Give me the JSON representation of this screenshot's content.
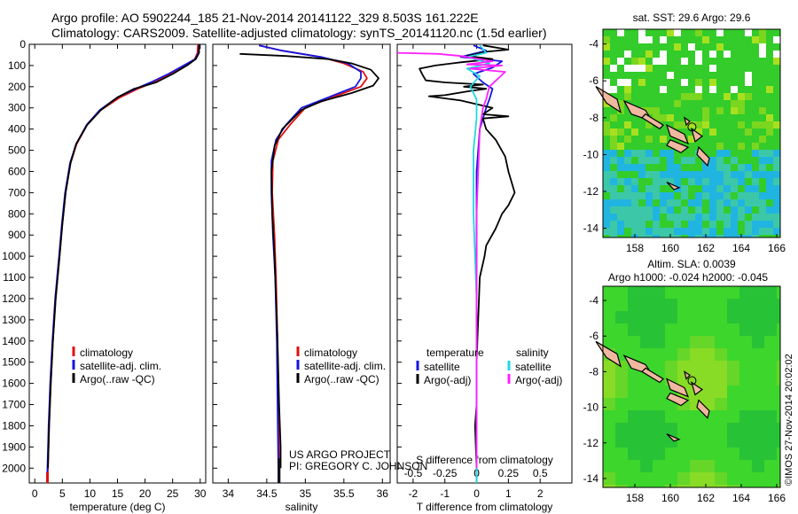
{
  "header": {
    "line1": "Argo profile: AO 5902244_185 21-Nov-2014 20141122_329 8.503S 161.222E",
    "line2": "Climatology: CARS2009. Satellite-adjusted climatology: synTS_20141120.nc (1.5d earlier)"
  },
  "credit": {
    "line1": "US ARGO PROJECT",
    "line2": "PI: GREGORY C. JOHNSON"
  },
  "side_stamp": "©IMOS 27-Nov-2014 20:02:02",
  "colors": {
    "climatology": "#e01010",
    "satellite": "#1515e0",
    "argo": "#000000",
    "sal_satellite": "#20d8e0",
    "sal_argo": "#ff20ff"
  },
  "chart_data": [
    {
      "type": "line",
      "xlabel": "temperature (deg C)",
      "xlim": [
        -1,
        31
      ],
      "xticks": [
        0,
        5,
        10,
        15,
        20,
        25,
        30
      ],
      "ylim": [
        2070,
        0
      ],
      "yticks": [
        0,
        100,
        200,
        300,
        400,
        500,
        600,
        700,
        800,
        900,
        1000,
        1100,
        1200,
        1300,
        1400,
        1500,
        1600,
        1700,
        1800,
        1900,
        2000
      ],
      "legend": {
        "placement": "lower-center",
        "entries": [
          "climatology",
          "satellite-adj. clim.",
          "Argo(..raw -QC)"
        ]
      },
      "series": [
        {
          "name": "climatology",
          "color": "#e01010",
          "points": [
            [
              29.6,
              0
            ],
            [
              29.5,
              40
            ],
            [
              29.0,
              70
            ],
            [
              27.2,
              100
            ],
            [
              24.5,
              140
            ],
            [
              21.5,
              180
            ],
            [
              18.7,
              210
            ],
            [
              15.5,
              250
            ],
            [
              12.0,
              310
            ],
            [
              9.5,
              380
            ],
            [
              7.6,
              470
            ],
            [
              6.5,
              560
            ],
            [
              5.6,
              700
            ],
            [
              5.0,
              850
            ],
            [
              4.5,
              1000
            ],
            [
              3.8,
              1200
            ],
            [
              3.3,
              1400
            ],
            [
              2.9,
              1600
            ],
            [
              2.6,
              1800
            ],
            [
              2.4,
              2000
            ],
            [
              2.3,
              2070
            ]
          ]
        },
        {
          "name": "satellite-adj. clim.",
          "color": "#1515e0",
          "points": [
            [
              29.9,
              0
            ],
            [
              29.7,
              40
            ],
            [
              29.1,
              70
            ],
            [
              27.0,
              100
            ],
            [
              24.2,
              140
            ],
            [
              21.0,
              180
            ],
            [
              18.3,
              210
            ],
            [
              15.0,
              250
            ],
            [
              11.8,
              310
            ],
            [
              9.4,
              380
            ],
            [
              7.5,
              470
            ],
            [
              6.4,
              560
            ],
            [
              5.5,
              700
            ],
            [
              4.9,
              850
            ],
            [
              4.4,
              1000
            ],
            [
              3.7,
              1200
            ],
            [
              3.2,
              1400
            ],
            [
              2.8,
              1600
            ],
            [
              2.5,
              1800
            ],
            [
              2.3,
              2000
            ],
            [
              2.2,
              2070
            ]
          ]
        },
        {
          "name": "Argo(..raw -QC)",
          "color": "#000000",
          "points": [
            [
              29.8,
              0
            ],
            [
              29.8,
              40
            ],
            [
              29.2,
              70
            ],
            [
              27.6,
              100
            ],
            [
              25.0,
              140
            ],
            [
              22.0,
              180
            ],
            [
              18.0,
              210
            ],
            [
              15.0,
              250
            ],
            [
              12.0,
              310
            ],
            [
              9.5,
              380
            ],
            [
              7.5,
              470
            ],
            [
              6.5,
              560
            ],
            [
              5.6,
              700
            ],
            [
              5.0,
              850
            ],
            [
              4.5,
              1000
            ],
            [
              3.8,
              1200
            ],
            [
              3.3,
              1400
            ],
            [
              2.9,
              1600
            ],
            [
              2.6,
              1800
            ],
            [
              2.4,
              2000
            ]
          ]
        }
      ]
    },
    {
      "type": "line",
      "xlabel": "salinity",
      "xlim": [
        33.8,
        36.1
      ],
      "xticks": [
        34,
        34.5,
        35,
        35.5,
        36
      ],
      "ylim": [
        2070,
        0
      ],
      "legend": {
        "placement": "lower-right",
        "entries": [
          "climatology",
          "satellite-adj. clim.",
          "Argo(..raw -QC)"
        ]
      },
      "series": [
        {
          "name": "climatology",
          "color": "#e01010",
          "points": [
            [
              34.4,
              5
            ],
            [
              34.7,
              30
            ],
            [
              35.2,
              60
            ],
            [
              35.5,
              90
            ],
            [
              35.75,
              130
            ],
            [
              35.8,
              160
            ],
            [
              35.72,
              200
            ],
            [
              35.35,
              250
            ],
            [
              35.0,
              300
            ],
            [
              34.8,
              380
            ],
            [
              34.65,
              450
            ],
            [
              34.58,
              550
            ],
            [
              34.57,
              700
            ],
            [
              34.6,
              900
            ],
            [
              34.62,
              1100
            ],
            [
              34.64,
              1400
            ],
            [
              34.65,
              1700
            ],
            [
              34.66,
              2000
            ],
            [
              34.66,
              2070
            ]
          ]
        },
        {
          "name": "satellite-adj. clim.",
          "color": "#1515e0",
          "points": [
            [
              34.4,
              5
            ],
            [
              34.7,
              30
            ],
            [
              35.2,
              60
            ],
            [
              35.55,
              90
            ],
            [
              35.72,
              130
            ],
            [
              35.72,
              160
            ],
            [
              35.65,
              200
            ],
            [
              35.3,
              250
            ],
            [
              34.95,
              300
            ],
            [
              34.75,
              380
            ],
            [
              34.62,
              450
            ],
            [
              34.56,
              550
            ],
            [
              34.56,
              700
            ],
            [
              34.58,
              900
            ],
            [
              34.61,
              1100
            ],
            [
              34.63,
              1400
            ],
            [
              34.64,
              1700
            ],
            [
              34.65,
              2000
            ],
            [
              34.65,
              2070
            ]
          ]
        },
        {
          "name": "Argo(..raw -QC)",
          "color": "#000000",
          "points": [
            [
              34.15,
              45
            ],
            [
              34.75,
              55
            ],
            [
              35.3,
              70
            ],
            [
              35.6,
              90
            ],
            [
              35.85,
              120
            ],
            [
              35.95,
              160
            ],
            [
              35.88,
              195
            ],
            [
              35.6,
              230
            ],
            [
              35.2,
              270
            ],
            [
              34.95,
              310
            ],
            [
              34.7,
              400
            ],
            [
              34.6,
              480
            ],
            [
              34.56,
              600
            ],
            [
              34.57,
              800
            ],
            [
              34.6,
              1000
            ],
            [
              34.62,
              1200
            ],
            [
              34.64,
              1400
            ],
            [
              34.66,
              1700
            ],
            [
              34.68,
              1900
            ],
            [
              34.68,
              2000
            ]
          ]
        }
      ]
    },
    {
      "type": "line",
      "xlabel": "T difference from climatology",
      "x2label": "S difference from climatology",
      "xlim": [
        -2.5,
        3.0
      ],
      "xticks": [
        -2,
        -1,
        0,
        1,
        2
      ],
      "x2ticks": [
        "-0.5",
        "-0.25",
        "0",
        "0.25",
        "0.5"
      ],
      "x2tick_values": [
        -2,
        -1,
        0,
        1,
        2
      ],
      "ylim": [
        2070,
        0
      ],
      "legend": {
        "placement": "lower-center",
        "headers": [
          "temperature",
          "salinity"
        ],
        "entries": [
          "satellite",
          "Argo(-adj)",
          "satellite",
          "Argo(-adj)"
        ]
      },
      "series": [
        {
          "name": "temperature satellite",
          "color": "#1515e0",
          "points": [
            [
              -0.1,
              5
            ],
            [
              0.3,
              30
            ],
            [
              -0.5,
              60
            ],
            [
              0.8,
              80
            ],
            [
              0.5,
              110
            ],
            [
              -0.1,
              140
            ],
            [
              0.2,
              180
            ],
            [
              0.5,
              210
            ],
            [
              0.4,
              260
            ],
            [
              0.3,
              300
            ],
            [
              0.1,
              400
            ],
            [
              0.0,
              600
            ],
            [
              0.0,
              1000
            ],
            [
              0.0,
              1500
            ],
            [
              0.0,
              2000
            ],
            [
              0.0,
              2070
            ]
          ]
        },
        {
          "name": "temperature Argo(-adj)",
          "color": "#000000",
          "points": [
            [
              0.2,
              5
            ],
            [
              1.0,
              25
            ],
            [
              0.3,
              35
            ],
            [
              -0.3,
              55
            ],
            [
              0.5,
              70
            ],
            [
              -0.5,
              85
            ],
            [
              -1.3,
              100
            ],
            [
              -1.8,
              115
            ],
            [
              -1.7,
              145
            ],
            [
              -1.6,
              170
            ],
            [
              -1.0,
              180
            ],
            [
              0.2,
              190
            ],
            [
              -0.4,
              200
            ],
            [
              0.3,
              210
            ],
            [
              -0.2,
              220
            ],
            [
              -1.0,
              240
            ],
            [
              -1.5,
              245
            ],
            [
              -0.5,
              265
            ],
            [
              0.5,
              300
            ],
            [
              0.2,
              330
            ],
            [
              1.0,
              340
            ],
            [
              0.2,
              350
            ],
            [
              0.3,
              400
            ],
            [
              0.6,
              450
            ],
            [
              0.9,
              530
            ],
            [
              1.0,
              600
            ],
            [
              1.2,
              700
            ],
            [
              1.0,
              760
            ],
            [
              0.8,
              800
            ],
            [
              0.6,
              870
            ],
            [
              0.3,
              950
            ],
            [
              0.25,
              1000
            ],
            [
              0.1,
              1100
            ],
            [
              0.05,
              1300
            ],
            [
              0.0,
              1500
            ],
            [
              0.0,
              1700
            ],
            [
              -0.05,
              1800
            ],
            [
              0.0,
              2000
            ]
          ]
        },
        {
          "name": "salinity satellite",
          "color": "#20d8e0",
          "points": [
            [
              0.1,
              5
            ],
            [
              0.3,
              40
            ],
            [
              -0.3,
              60
            ],
            [
              0.4,
              90
            ],
            [
              -0.3,
              115
            ],
            [
              0.1,
              150
            ],
            [
              -0.2,
              200
            ],
            [
              0.0,
              260
            ],
            [
              0.0,
              350
            ],
            [
              -0.1,
              500
            ],
            [
              -0.1,
              800
            ],
            [
              0.0,
              1200
            ],
            [
              0.0,
              1600
            ],
            [
              0.0,
              2070
            ]
          ]
        },
        {
          "name": "salinity Argo(-adj)",
          "color": "#ff20ff",
          "points": [
            [
              -2.5,
              40
            ],
            [
              -1.2,
              45
            ],
            [
              -0.5,
              55
            ],
            [
              0.5,
              80
            ],
            [
              -0.3,
              95
            ],
            [
              0.8,
              100
            ],
            [
              -0.2,
              115
            ],
            [
              0.9,
              130
            ],
            [
              0.4,
              200
            ],
            [
              0.3,
              260
            ],
            [
              0.2,
              300
            ],
            [
              0.1,
              400
            ],
            [
              0.05,
              600
            ],
            [
              0.0,
              800
            ],
            [
              0.0,
              1000
            ],
            [
              0.0,
              1300
            ],
            [
              0.0,
              1600
            ],
            [
              0.0,
              2000
            ]
          ]
        }
      ]
    },
    {
      "type": "heatmap",
      "title": "sat. SST: 29.6  Argo: 29.6",
      "xlim": [
        156.2,
        166.2
      ],
      "xticks": [
        158,
        160,
        162,
        164,
        166
      ],
      "ylim": [
        -14.5,
        -3.2
      ],
      "yticks": [
        -4,
        -6,
        -8,
        -10,
        -12,
        -14
      ]
    },
    {
      "type": "heatmap",
      "title": "Altim. SLA: 0.0039",
      "subtitle": "Argo h1000: -0.024  h2000: -0.045",
      "xlim": [
        156.2,
        166.2
      ],
      "xticks": [
        158,
        160,
        162,
        164,
        166
      ],
      "ylim": [
        -14.5,
        -3.2
      ],
      "yticks": [
        -4,
        -6,
        -8,
        -10,
        -12,
        -14
      ]
    }
  ]
}
